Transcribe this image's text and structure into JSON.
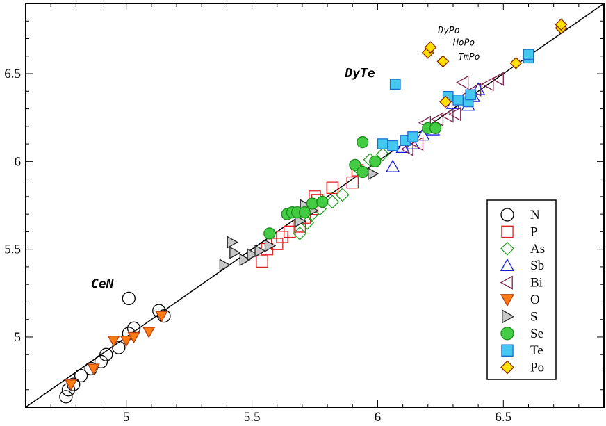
{
  "chart_data": {
    "type": "scatter",
    "title": "",
    "xlabel": "",
    "ylabel": "",
    "xlim": [
      4.6,
      6.9
    ],
    "ylim": [
      4.6,
      6.9
    ],
    "grid": false,
    "legend_position": "bottom-right",
    "x_tick_labels": [
      {
        "value": 5,
        "label": "5"
      },
      {
        "value": 5.5,
        "label": "5.5"
      },
      {
        "value": 6,
        "label": "6"
      },
      {
        "value": 6.5,
        "label": "6.5"
      }
    ],
    "y_tick_labels": [
      {
        "value": 5,
        "label": "5"
      },
      {
        "value": 5.5,
        "label": "5.5"
      },
      {
        "value": 6,
        "label": "6"
      },
      {
        "value": 6.5,
        "label": "6.5"
      }
    ],
    "reference_line": {
      "from": [
        4.6,
        4.6
      ],
      "to": [
        6.9,
        6.9
      ],
      "color": "#000000"
    },
    "series": [
      {
        "name": "N",
        "marker": "circle",
        "stroke": "#000000",
        "fill": "none",
        "points": [
          [
            4.76,
            4.66
          ],
          [
            4.77,
            4.7
          ],
          [
            4.79,
            4.73
          ],
          [
            4.82,
            4.78
          ],
          [
            4.86,
            4.82
          ],
          [
            4.9,
            4.86
          ],
          [
            4.92,
            4.9
          ],
          [
            4.97,
            4.94
          ],
          [
            5.01,
            5.02
          ],
          [
            5.03,
            5.05
          ],
          [
            5.13,
            5.15
          ],
          [
            5.15,
            5.12
          ],
          [
            5.01,
            5.22
          ]
        ]
      },
      {
        "name": "P",
        "marker": "square",
        "stroke": "#e02020",
        "fill": "none",
        "points": [
          [
            5.54,
            5.43
          ],
          [
            5.56,
            5.5
          ],
          [
            5.6,
            5.53
          ],
          [
            5.62,
            5.57
          ],
          [
            5.65,
            5.6
          ],
          [
            5.69,
            5.63
          ],
          [
            5.71,
            5.68
          ],
          [
            5.74,
            5.73
          ],
          [
            5.75,
            5.8
          ],
          [
            5.76,
            5.78
          ],
          [
            5.82,
            5.85
          ],
          [
            5.9,
            5.88
          ],
          [
            5.92,
            5.95
          ]
        ]
      },
      {
        "name": "As",
        "marker": "diamond",
        "stroke": "#22a022",
        "fill": "none",
        "points": [
          [
            5.69,
            5.59
          ],
          [
            5.72,
            5.65
          ],
          [
            5.74,
            5.7
          ],
          [
            5.77,
            5.73
          ],
          [
            5.82,
            5.77
          ],
          [
            5.86,
            5.81
          ],
          [
            5.93,
            5.95
          ],
          [
            5.97,
            6.01
          ],
          [
            6.02,
            6.04
          ]
        ]
      },
      {
        "name": "Sb",
        "marker": "triangle-up",
        "stroke": "#1a1ae0",
        "fill": "none",
        "points": [
          [
            6.06,
            5.97
          ],
          [
            6.1,
            6.08
          ],
          [
            6.14,
            6.1
          ],
          [
            6.18,
            6.15
          ],
          [
            6.22,
            6.18
          ],
          [
            6.3,
            6.33
          ],
          [
            6.38,
            6.37
          ],
          [
            6.4,
            6.41
          ],
          [
            6.36,
            6.32
          ]
        ]
      },
      {
        "name": "Bi",
        "marker": "triangle-left",
        "stroke": "#7a1f4a",
        "fill": "none",
        "points": [
          [
            6.12,
            6.07
          ],
          [
            6.16,
            6.1
          ],
          [
            6.19,
            6.22
          ],
          [
            6.24,
            6.24
          ],
          [
            6.28,
            6.26
          ],
          [
            6.31,
            6.27
          ],
          [
            6.35,
            6.37
          ],
          [
            6.39,
            6.41
          ],
          [
            6.44,
            6.44
          ],
          [
            6.48,
            6.47
          ],
          [
            6.34,
            6.45
          ]
        ]
      },
      {
        "name": "O",
        "marker": "triangle-down",
        "stroke": "#b04010",
        "fill": "#ff7a10",
        "points": [
          [
            4.78,
            4.73
          ],
          [
            4.87,
            4.82
          ],
          [
            4.95,
            4.98
          ],
          [
            5.0,
            4.98
          ],
          [
            5.03,
            5.0
          ],
          [
            5.09,
            5.03
          ],
          [
            5.14,
            5.12
          ]
        ]
      },
      {
        "name": "S",
        "marker": "triangle-right",
        "stroke": "#222222",
        "fill": "#c8c8c8",
        "points": [
          [
            5.39,
            5.41
          ],
          [
            5.42,
            5.54
          ],
          [
            5.43,
            5.48
          ],
          [
            5.47,
            5.44
          ],
          [
            5.5,
            5.47
          ],
          [
            5.53,
            5.49
          ],
          [
            5.57,
            5.52
          ],
          [
            5.69,
            5.66
          ],
          [
            5.71,
            5.75
          ],
          [
            5.74,
            5.72
          ],
          [
            5.98,
            5.93
          ]
        ]
      },
      {
        "name": "Se",
        "marker": "circle",
        "stroke": "#1a8a1a",
        "fill": "#44cc44",
        "points": [
          [
            5.57,
            5.59
          ],
          [
            5.64,
            5.7
          ],
          [
            5.66,
            5.71
          ],
          [
            5.68,
            5.71
          ],
          [
            5.71,
            5.71
          ],
          [
            5.74,
            5.76
          ],
          [
            5.78,
            5.77
          ],
          [
            5.91,
            5.98
          ],
          [
            5.94,
            5.94
          ],
          [
            5.99,
            6.0
          ],
          [
            5.94,
            6.11
          ],
          [
            6.2,
            6.19
          ],
          [
            6.23,
            6.19
          ]
        ]
      },
      {
        "name": "Te",
        "marker": "square",
        "stroke": "#1a6ad0",
        "fill": "#44c8f0",
        "points": [
          [
            6.02,
            6.1
          ],
          [
            6.06,
            6.09
          ],
          [
            6.11,
            6.12
          ],
          [
            6.14,
            6.14
          ],
          [
            6.28,
            6.37
          ],
          [
            6.32,
            6.35
          ],
          [
            6.36,
            6.34
          ],
          [
            6.37,
            6.38
          ],
          [
            6.6,
            6.59
          ],
          [
            6.6,
            6.61
          ],
          [
            6.07,
            6.44
          ]
        ]
      },
      {
        "name": "Po",
        "marker": "diamond",
        "stroke": "#8a2a00",
        "fill": "#ffe000",
        "points": [
          [
            6.2,
            6.62
          ],
          [
            6.21,
            6.65
          ],
          [
            6.26,
            6.57
          ],
          [
            6.27,
            6.34
          ],
          [
            6.55,
            6.56
          ],
          [
            6.73,
            6.76
          ],
          [
            6.73,
            6.78
          ]
        ]
      }
    ],
    "annotations": [
      {
        "text": "CeN",
        "x": 4.86,
        "y": 5.28,
        "style": "bold"
      },
      {
        "text": "DyTe",
        "x": 5.87,
        "y": 6.48,
        "style": "bold"
      },
      {
        "text": "DyPo",
        "x": 6.24,
        "y": 6.73,
        "style": "small"
      },
      {
        "text": "HoPo",
        "x": 6.3,
        "y": 6.66,
        "style": "small"
      },
      {
        "text": "TmPo",
        "x": 6.32,
        "y": 6.58,
        "style": "small"
      }
    ]
  }
}
